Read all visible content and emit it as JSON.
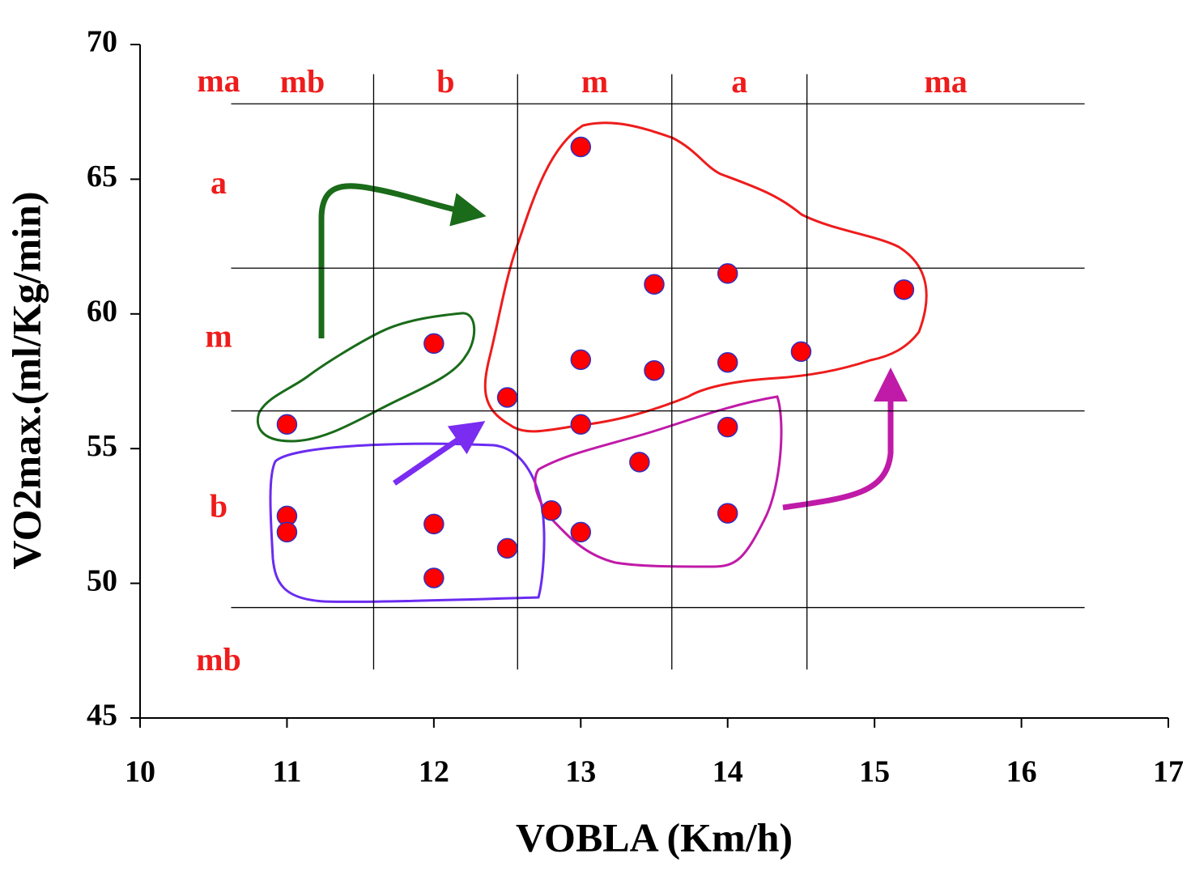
{
  "chart_data": {
    "type": "scatter",
    "xlabel": "VOBLA (Km/h)",
    "ylabel": "VO2max.(ml/Kg/min)",
    "x": [
      13,
      13.5,
      14,
      15.2,
      12,
      13,
      13.5,
      14,
      14.5,
      12.5,
      11,
      13,
      14,
      13.4,
      11,
      11,
      12,
      12.8,
      13,
      14,
      12.5,
      12
    ],
    "values": [
      66.2,
      61.1,
      61.5,
      60.9,
      58.9,
      58.3,
      57.9,
      58.2,
      58.6,
      56.9,
      55.9,
      55.9,
      55.8,
      54.5,
      52.5,
      51.9,
      52.2,
      52.7,
      51.9,
      52.6,
      51.3,
      50.2
    ],
    "color": "#ff0000",
    "xlim": [
      10,
      17
    ],
    "xticks": [
      10,
      11,
      12,
      13,
      14,
      15,
      16,
      17
    ],
    "ylim": [
      45,
      70
    ],
    "yticks": [
      45,
      50,
      55,
      60,
      65,
      70
    ],
    "zone_lines": {
      "x": [
        11.59,
        12.57,
        13.62,
        14.54
      ],
      "y": [
        67.8,
        61.7,
        56.4,
        49.1
      ],
      "x_span": [
        10.62,
        16.43
      ],
      "y_span": [
        46.8,
        68.9
      ]
    },
    "zone_labels": {
      "top": [
        "mb",
        "b",
        "m",
        "a",
        "ma"
      ],
      "left": [
        "ma",
        "a",
        "m",
        "b",
        "mb"
      ]
    }
  }
}
